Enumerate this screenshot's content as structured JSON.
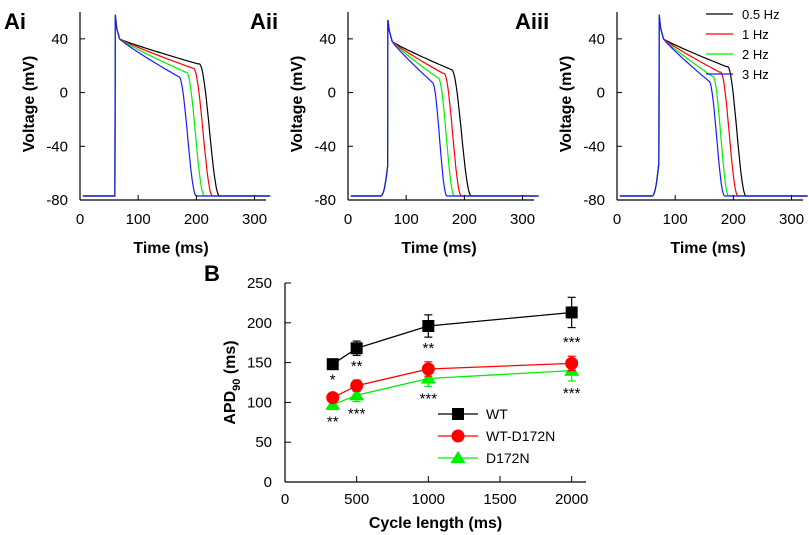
{
  "chart_data": [
    {
      "type": "line",
      "panel": "Ai",
      "title": "Ai",
      "xlabel": "Time (ms)",
      "ylabel": "Voltage (mV)",
      "xlim": [
        0,
        330
      ],
      "ylim": [
        -80,
        60
      ],
      "xticks": [
        0,
        100,
        200,
        300
      ],
      "yticks": [
        -80,
        -40,
        0,
        40
      ],
      "upstroke_time": 60,
      "pre_upstroke_voltage": -77,
      "rest_voltage": -77,
      "peak_voltage": 58,
      "plateau_voltage": 40,
      "series": [
        {
          "name": "0.5 Hz",
          "color": "#000000",
          "repol_time": 240,
          "repol_start": 205,
          "plateau_mid_voltage": 22
        },
        {
          "name": "1 Hz",
          "color": "#ff0000",
          "repol_time": 228,
          "repol_start": 195,
          "plateau_mid_voltage": 19
        },
        {
          "name": "2 Hz",
          "color": "#00ee00",
          "repol_time": 214,
          "repol_start": 183,
          "plateau_mid_voltage": 16
        },
        {
          "name": "3 Hz",
          "color": "#1a1aff",
          "repol_time": 200,
          "repol_start": 170,
          "plateau_mid_voltage": 13
        }
      ]
    },
    {
      "type": "line",
      "panel": "Aii",
      "title": "Aii",
      "xlabel": "Time (ms)",
      "ylabel": "Voltage (mV)",
      "xlim": [
        0,
        330
      ],
      "ylim": [
        -80,
        60
      ],
      "xticks": [
        0,
        100,
        200,
        300
      ],
      "yticks": [
        -80,
        -40,
        0,
        40
      ],
      "upstroke_time": 68,
      "pre_upstroke_voltage": -55,
      "rest_voltage": -77,
      "peak_voltage": 54,
      "plateau_voltage": 38,
      "series": [
        {
          "name": "0.5 Hz",
          "color": "#000000",
          "repol_time": 212,
          "repol_start": 178,
          "plateau_mid_voltage": 18
        },
        {
          "name": "1 Hz",
          "color": "#ff0000",
          "repol_time": 195,
          "repol_start": 165,
          "plateau_mid_voltage": 15
        },
        {
          "name": "2 Hz",
          "color": "#00ee00",
          "repol_time": 183,
          "repol_start": 155,
          "plateau_mid_voltage": 12
        },
        {
          "name": "3 Hz",
          "color": "#1a1aff",
          "repol_time": 170,
          "repol_start": 145,
          "plateau_mid_voltage": 9
        }
      ]
    },
    {
      "type": "line",
      "panel": "Aiii",
      "title": "Aiii",
      "xlabel": "Time (ms)",
      "ylabel": "Voltage (mV)",
      "xlim": [
        0,
        330
      ],
      "ylim": [
        -80,
        60
      ],
      "xticks": [
        0,
        100,
        200,
        300
      ],
      "yticks": [
        -80,
        -40,
        0,
        40
      ],
      "upstroke_time": 72,
      "pre_upstroke_voltage": -52,
      "rest_voltage": -77,
      "peak_voltage": 58,
      "plateau_voltage": 40,
      "series": [
        {
          "name": "0.5 Hz",
          "color": "#000000",
          "repol_time": 222,
          "repol_start": 190,
          "plateau_mid_voltage": 20
        },
        {
          "name": "1 Hz",
          "color": "#ff0000",
          "repol_time": 208,
          "repol_start": 178,
          "plateau_mid_voltage": 16
        },
        {
          "name": "2 Hz",
          "color": "#00ee00",
          "repol_time": 192,
          "repol_start": 165,
          "plateau_mid_voltage": 13
        },
        {
          "name": "3 Hz",
          "color": "#1a1aff",
          "repol_time": 185,
          "repol_start": 158,
          "plateau_mid_voltage": 10
        }
      ]
    },
    {
      "type": "line",
      "panel": "B",
      "title": "B",
      "xlabel": "Cycle length (ms)",
      "ylabel": "APD",
      "ylabel_sub": "90",
      "ylabel_suffix": " (ms)",
      "xlim": [
        0,
        2100
      ],
      "ylim": [
        0,
        250
      ],
      "xticks": [
        0,
        500,
        1000,
        1500,
        2000
      ],
      "yticks": [
        0,
        50,
        100,
        150,
        200,
        250
      ],
      "x": [
        333,
        500,
        1000,
        2000
      ],
      "series": [
        {
          "name": "WT",
          "color": "#000000",
          "marker": "square",
          "values": [
            148,
            168,
            196,
            213
          ],
          "errors": [
            6,
            9,
            14,
            19
          ]
        },
        {
          "name": "WT-D172N",
          "color": "#ff0000",
          "marker": "circle",
          "values": [
            106,
            121,
            142,
            149
          ],
          "errors": [
            5,
            7,
            9,
            9
          ]
        },
        {
          "name": "D172N",
          "color": "#00ee00",
          "marker": "triangle",
          "values": [
            97,
            109,
            130,
            140
          ],
          "errors": [
            6,
            8,
            10,
            13
          ]
        }
      ],
      "significance_above": [
        {
          "x": 333,
          "label": "*"
        },
        {
          "x": 500,
          "label": "**"
        },
        {
          "x": 1000,
          "label": "**"
        },
        {
          "x": 2000,
          "label": "***"
        }
      ],
      "significance_below": [
        {
          "x": 333,
          "label": "**"
        },
        {
          "x": 500,
          "label": "***"
        },
        {
          "x": 1000,
          "label": "***"
        },
        {
          "x": 2000,
          "label": "***"
        }
      ]
    }
  ]
}
